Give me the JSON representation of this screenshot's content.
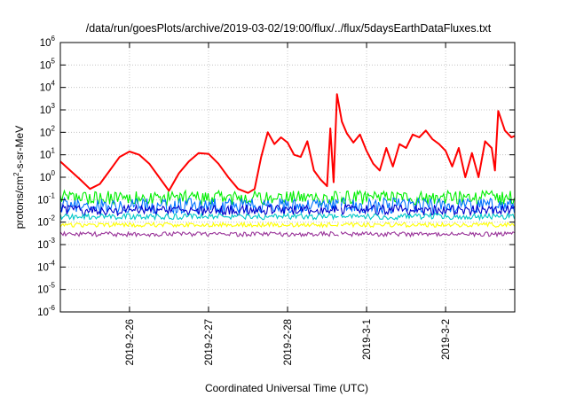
{
  "chart_data": {
    "type": "line",
    "title": "/data/run/goesPlots/archive/2019-03-02/19:00/flux/../flux/5daysEarthDataFluxes.txt",
    "xlabel": "Coordinated Universal Time (UTC)",
    "ylabel_parts": {
      "pre": "protons/cm",
      "sup": "2",
      "post": "-s-sr-MeV"
    },
    "y_scale": "log",
    "ylim": [
      1e-06,
      1000000
    ],
    "y_ticks": [
      {
        "value": 1e-06,
        "base": "10",
        "exp": "-6"
      },
      {
        "value": 1e-05,
        "base": "10",
        "exp": "-5"
      },
      {
        "value": 0.0001,
        "base": "10",
        "exp": "-4"
      },
      {
        "value": 0.001,
        "base": "10",
        "exp": "-3"
      },
      {
        "value": 0.01,
        "base": "10",
        "exp": "-2"
      },
      {
        "value": 0.1,
        "base": "10",
        "exp": "-1"
      },
      {
        "value": 1,
        "base": "10",
        "exp": "0"
      },
      {
        "value": 10,
        "base": "10",
        "exp": "1"
      },
      {
        "value": 100,
        "base": "10",
        "exp": "2"
      },
      {
        "value": 1000,
        "base": "10",
        "exp": "3"
      },
      {
        "value": 10000,
        "base": "10",
        "exp": "4"
      },
      {
        "value": 100000,
        "base": "10",
        "exp": "5"
      },
      {
        "value": 1000000,
        "base": "10",
        "exp": "6"
      }
    ],
    "xlim": [
      "2019-02-25 03:00",
      "2019-03-02 21:00"
    ],
    "x_ticks": [
      "2019-2-26",
      "2019-2-27",
      "2019-2-28",
      "2019-3-1",
      "2019-3-2"
    ],
    "grid": true,
    "data_gap": [
      "2019-02-28 15:30",
      "2019-02-28 16:10"
    ],
    "series": [
      {
        "color": "#ff0000",
        "x": [
          "2019-02-25 03:00",
          "2019-02-25 06:00",
          "2019-02-25 09:00",
          "2019-02-25 12:00",
          "2019-02-25 15:00",
          "2019-02-25 18:00",
          "2019-02-25 21:00",
          "2019-02-26 00:00",
          "2019-02-26 03:00",
          "2019-02-26 06:00",
          "2019-02-26 09:00",
          "2019-02-26 12:00",
          "2019-02-26 15:00",
          "2019-02-26 18:00",
          "2019-02-26 21:00",
          "2019-02-27 00:00",
          "2019-02-27 03:00",
          "2019-02-27 06:00",
          "2019-02-27 09:00",
          "2019-02-27 12:00",
          "2019-02-27 14:00",
          "2019-02-27 16:00",
          "2019-02-27 18:00",
          "2019-02-27 20:00",
          "2019-02-27 22:00",
          "2019-02-28 00:00",
          "2019-02-28 02:00",
          "2019-02-28 04:00",
          "2019-02-28 06:00",
          "2019-02-28 08:00",
          "2019-02-28 10:00",
          "2019-02-28 12:00",
          "2019-02-28 13:00",
          "2019-02-28 14:00",
          "2019-02-28 15:00",
          "2019-02-28 16:30",
          "2019-02-28 18:00",
          "2019-02-28 20:00",
          "2019-02-28 22:00",
          "2019-03-01 00:00",
          "2019-03-01 02:00",
          "2019-03-01 04:00",
          "2019-03-01 06:00",
          "2019-03-01 08:00",
          "2019-03-01 10:00",
          "2019-03-01 12:00",
          "2019-03-01 14:00",
          "2019-03-01 16:00",
          "2019-03-01 18:00",
          "2019-03-01 20:00",
          "2019-03-01 22:00",
          "2019-03-02 00:00",
          "2019-03-02 02:00",
          "2019-03-02 04:00",
          "2019-03-02 06:00",
          "2019-03-02 08:00",
          "2019-03-02 10:00",
          "2019-03-02 12:00",
          "2019-03-02 14:00",
          "2019-03-02 15:00",
          "2019-03-02 16:00",
          "2019-03-02 18:00",
          "2019-03-02 20:00",
          "2019-03-02 21:00"
        ],
        "y": [
          5,
          2,
          0.8,
          0.3,
          0.5,
          2,
          8,
          14,
          10,
          4,
          1,
          0.25,
          1.5,
          5,
          12,
          11,
          4,
          1,
          0.3,
          0.2,
          0.3,
          8,
          100,
          30,
          60,
          35,
          10,
          8,
          40,
          2,
          0.8,
          0.4,
          150,
          0.6,
          5000,
          300,
          90,
          35,
          80,
          15,
          4,
          2,
          20,
          3,
          30,
          20,
          80,
          60,
          120,
          50,
          30,
          15,
          3,
          20,
          1,
          12,
          1,
          40,
          20,
          2,
          900,
          120,
          60,
          70
        ]
      },
      {
        "color": "#00ee00",
        "level_y": 0.13,
        "spread_y": [
          0.06,
          0.25
        ]
      },
      {
        "color": "#0072ff",
        "level_y": 0.055,
        "spread_y": [
          0.025,
          0.12
        ]
      },
      {
        "color": "#0000cc",
        "level_y": 0.035,
        "spread_y": [
          0.02,
          0.06
        ]
      },
      {
        "color": "#00c8c8",
        "level_y": 0.018,
        "spread_y": [
          0.013,
          0.024
        ]
      },
      {
        "color": "#ffff00",
        "level_y": 0.0075,
        "spread_y": [
          0.006,
          0.0095
        ]
      },
      {
        "color": "#993399",
        "level_y": 0.003,
        "spread_y": [
          0.0023,
          0.0037
        ]
      }
    ]
  }
}
